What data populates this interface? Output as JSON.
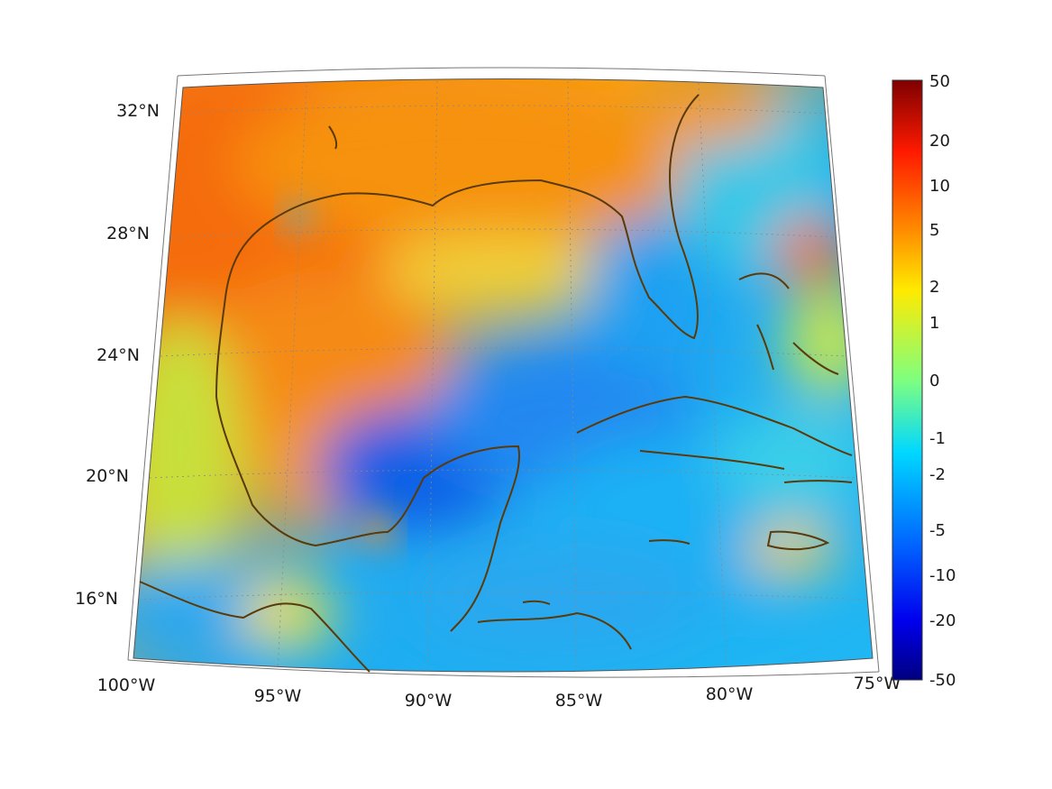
{
  "map": {
    "projection": "conic",
    "lon_range": [
      -100,
      -75
    ],
    "lat_range": [
      14,
      33
    ],
    "lon_ticks": [
      {
        "value": -100,
        "label": "100°W"
      },
      {
        "value": -95,
        "label": "95°W"
      },
      {
        "value": -90,
        "label": "90°W"
      },
      {
        "value": -85,
        "label": "85°W"
      },
      {
        "value": -80,
        "label": "80°W"
      },
      {
        "value": -75,
        "label": "75°W"
      }
    ],
    "lat_ticks": [
      {
        "value": 16,
        "label": "16°N"
      },
      {
        "value": 20,
        "label": "20°N"
      },
      {
        "value": 24,
        "label": "24°N"
      },
      {
        "value": 28,
        "label": "28°N"
      },
      {
        "value": 32,
        "label": "32°N"
      }
    ],
    "grid": true,
    "coastline_color": "#5a3a0a",
    "field_colormap": "jet"
  },
  "colorbar": {
    "scale": "symmetric-log",
    "placement": "right",
    "ticks": [
      "50",
      "20",
      "10",
      "5",
      "2",
      "1",
      "0",
      "-1",
      "-2",
      "-5",
      "-10",
      "-20",
      "-50"
    ]
  }
}
